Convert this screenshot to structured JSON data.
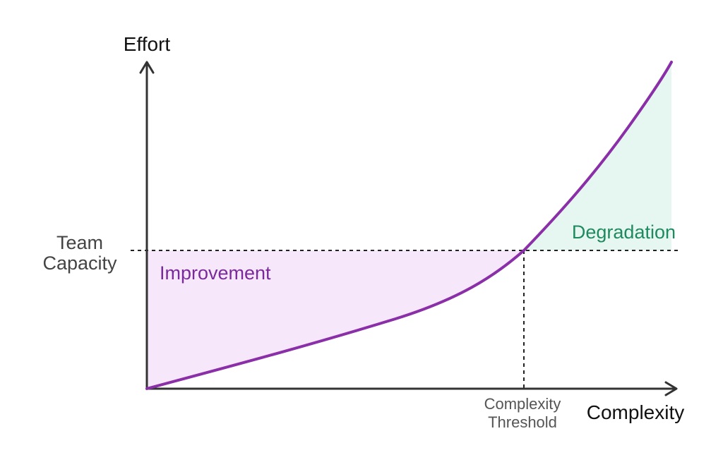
{
  "labels": {
    "y_axis": "Effort",
    "x_axis": "Complexity",
    "capacity_line1": "Team",
    "capacity_line2": "Capacity",
    "threshold_line1": "Complexity",
    "threshold_line2": "Threshold",
    "region_improvement": "Improvement",
    "region_degradation": "Degradation"
  },
  "colors": {
    "curve": "#8a2fa8",
    "improvement_fill": "#f6e8fa",
    "degradation_fill": "#e6f7f1",
    "improvement_text": "#7a2a9a",
    "degradation_text": "#1f8a5f",
    "axis": "#333333"
  }
}
